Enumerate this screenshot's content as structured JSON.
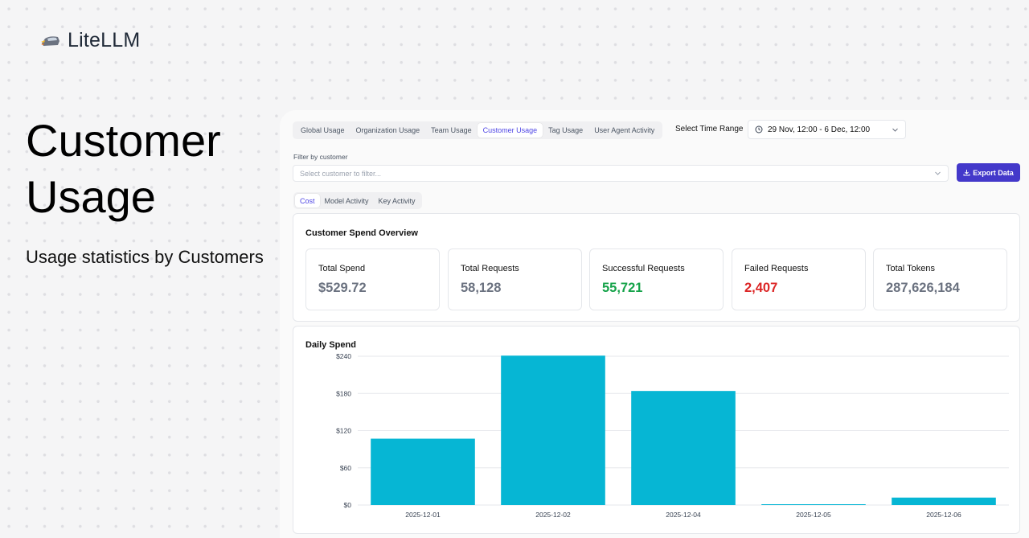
{
  "brand": {
    "name": "LiteLLM"
  },
  "hero": {
    "title": "Customer Usage",
    "subtitle": "Usage statistics by Customers"
  },
  "tabs": [
    {
      "label": "Global Usage",
      "active": false
    },
    {
      "label": "Organization Usage",
      "active": false
    },
    {
      "label": "Team Usage",
      "active": false
    },
    {
      "label": "Customer Usage",
      "active": true
    },
    {
      "label": "Tag Usage",
      "active": false
    },
    {
      "label": "User Agent Activity",
      "active": false
    }
  ],
  "time_range": {
    "label": "Select Time Range",
    "value": "29 Nov, 12:00 - 6 Dec, 12:00"
  },
  "filter": {
    "label": "Filter by customer",
    "placeholder": "Select customer to filter..."
  },
  "export_label": "Export Data",
  "subtabs": [
    {
      "label": "Cost",
      "active": true
    },
    {
      "label": "Model Activity",
      "active": false
    },
    {
      "label": "Key Activity",
      "active": false
    }
  ],
  "overview": {
    "title": "Customer Spend Overview",
    "stats": [
      {
        "label": "Total Spend",
        "value": "$529.72",
        "tone": "gray"
      },
      {
        "label": "Total Requests",
        "value": "58,128",
        "tone": "gray"
      },
      {
        "label": "Successful Requests",
        "value": "55,721",
        "tone": "green"
      },
      {
        "label": "Failed Requests",
        "value": "2,407",
        "tone": "red"
      },
      {
        "label": "Total Tokens",
        "value": "287,626,184",
        "tone": "gray"
      }
    ]
  },
  "colors": {
    "accent": "#4338ca",
    "bar": "#06b6d4",
    "success": "#16a34a",
    "danger": "#dc2626"
  },
  "daily_spend_title": "Daily Spend",
  "chart_data": {
    "type": "bar",
    "categories": [
      "2025-12-01",
      "2025-12-02",
      "2025-12-04",
      "2025-12-05",
      "2025-12-06"
    ],
    "values": [
      107,
      241,
      184,
      0.5,
      12
    ],
    "yticks": [
      "$0",
      "$60",
      "$120",
      "$180",
      "$240"
    ],
    "ytick_values": [
      0,
      60,
      120,
      180,
      240
    ],
    "ylim": [
      0,
      240
    ],
    "grid": true
  }
}
